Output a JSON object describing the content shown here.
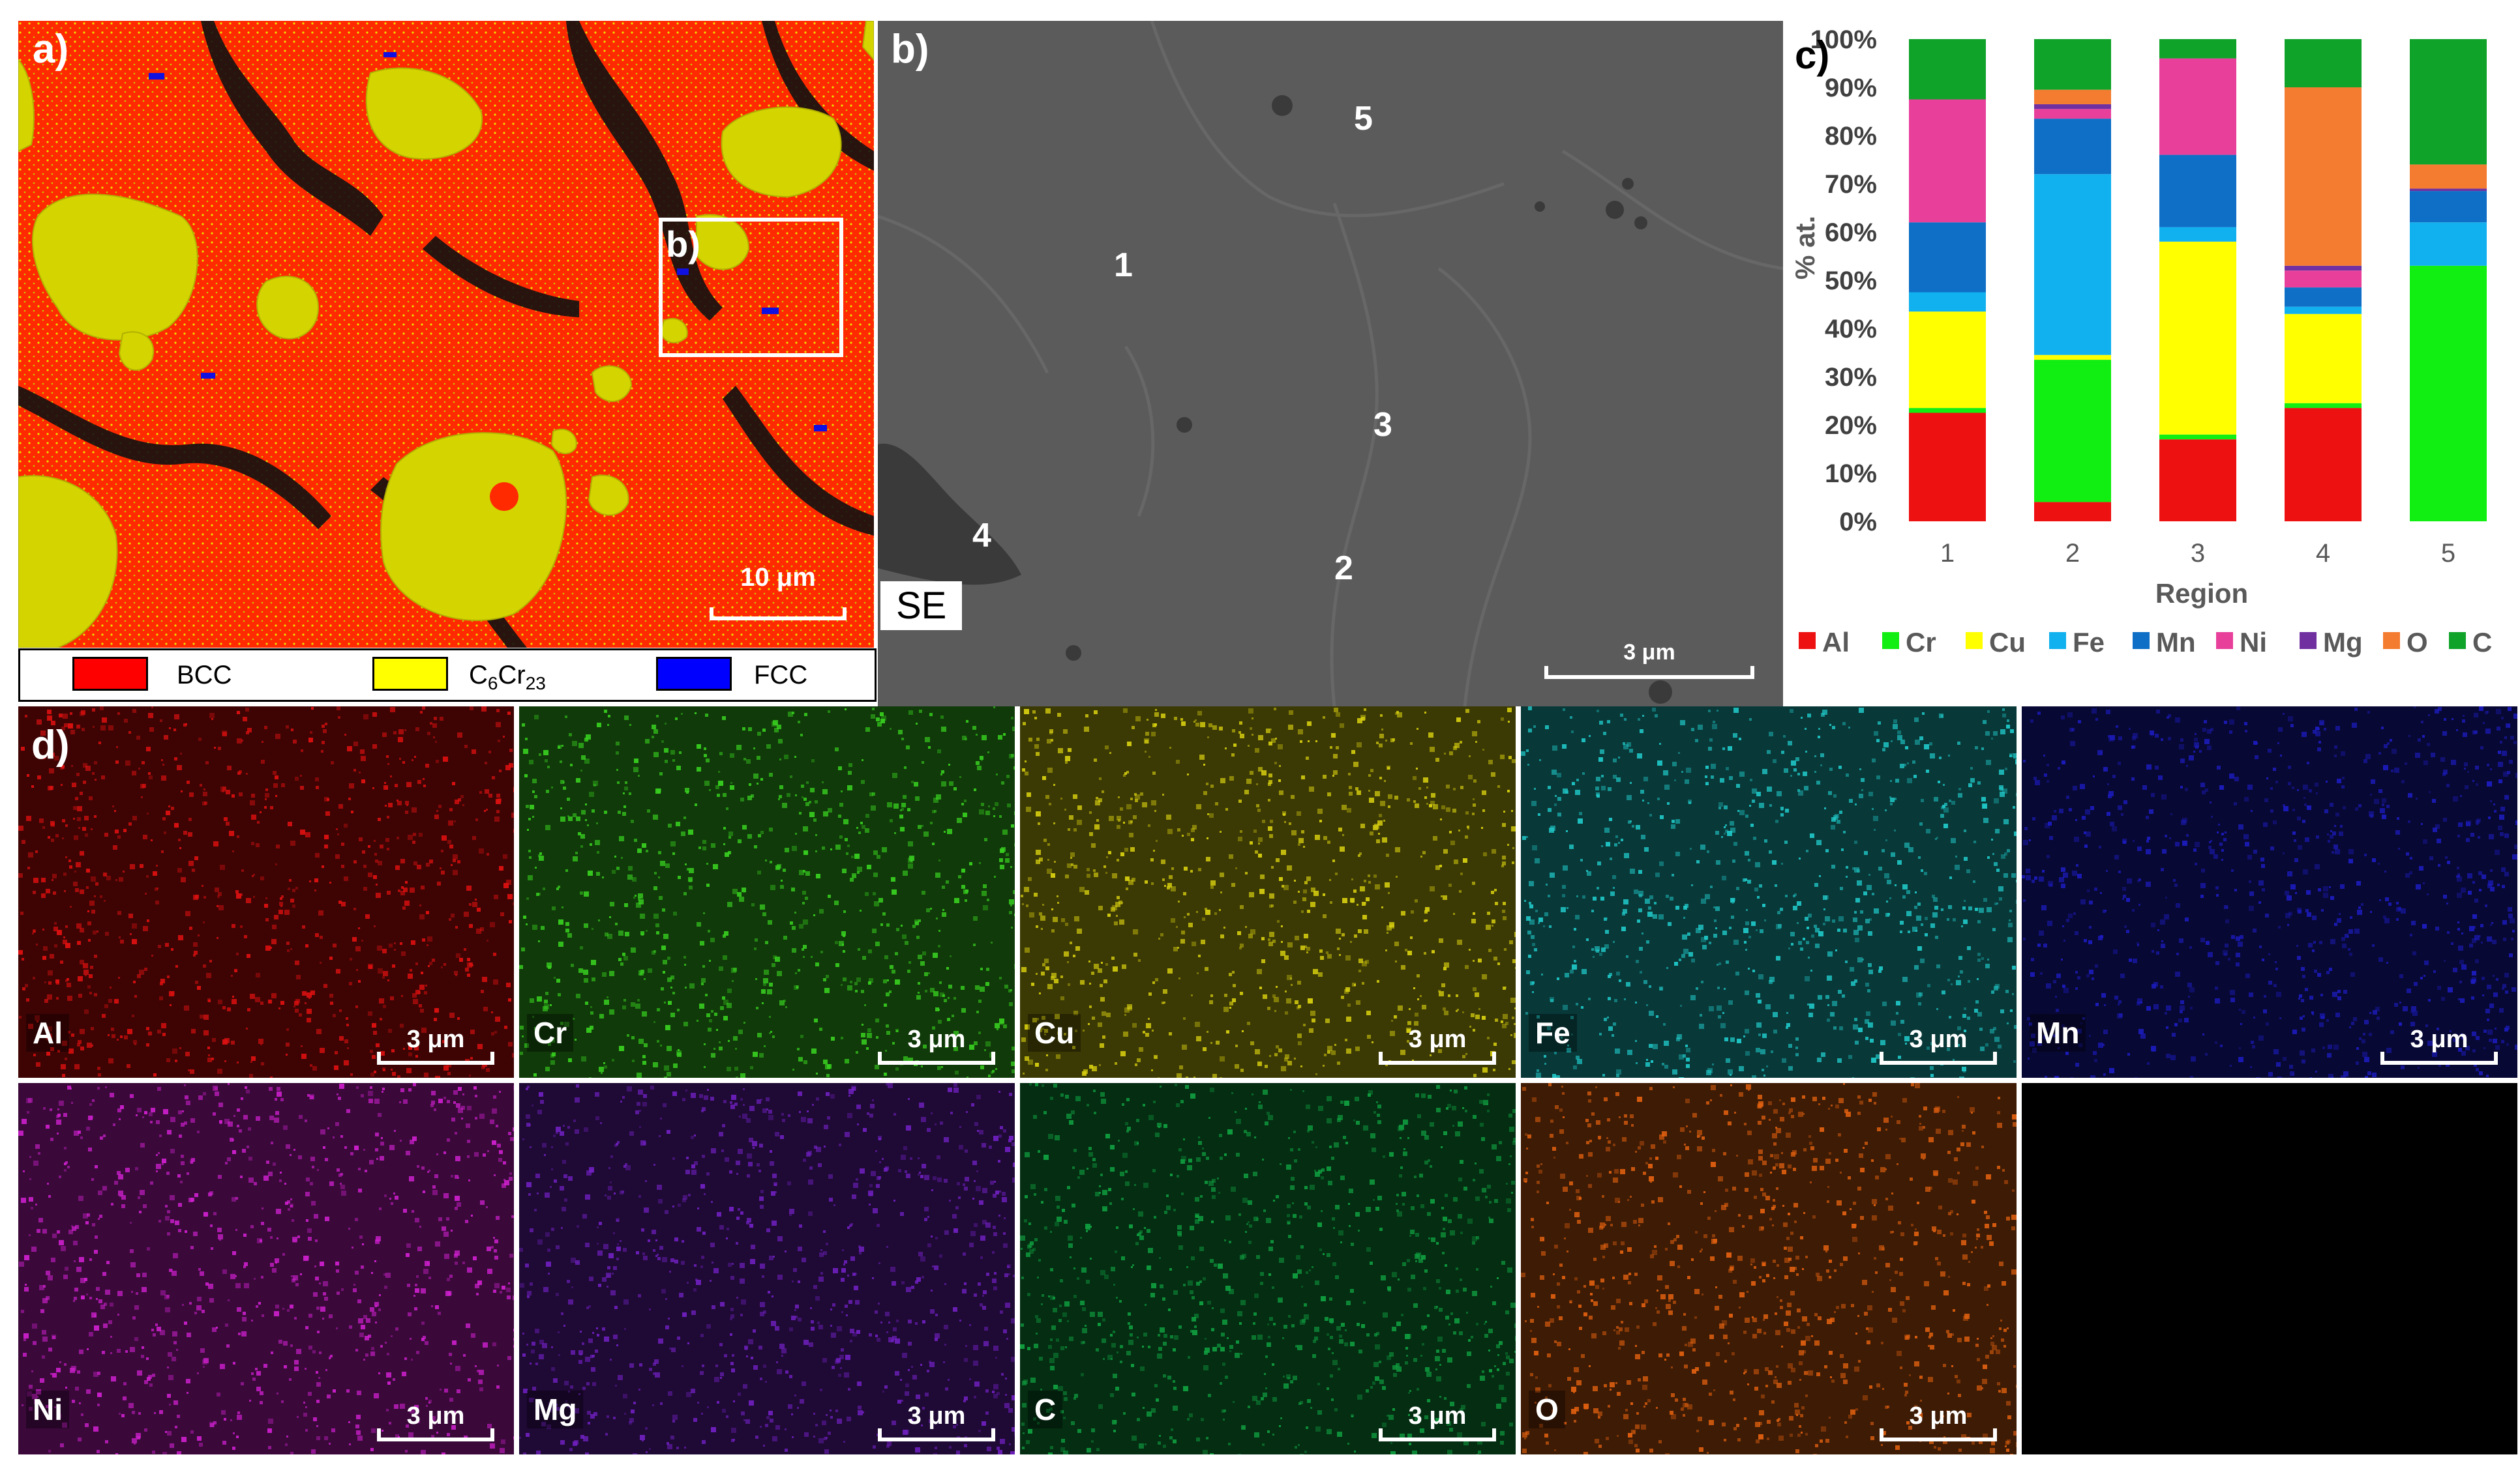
{
  "panels": {
    "a": {
      "label": "a)",
      "inset_label": "b)",
      "scale": "10 μm"
    },
    "b": {
      "label": "b)",
      "mode": "SE",
      "scale": "3 μm",
      "regions": [
        "1",
        "2",
        "3",
        "4",
        "5"
      ]
    },
    "c": {
      "label": "c)"
    },
    "d": {
      "label": "d)"
    }
  },
  "phase_legend": [
    {
      "name": "BCC",
      "color": "#ff0000"
    },
    {
      "name": "C6Cr23",
      "display_main": "C",
      "sub1": "6",
      "mid": "Cr",
      "sub2": "23",
      "color": "#ffff00"
    },
    {
      "name": "FCC",
      "color": "#0000ff"
    }
  ],
  "maps": [
    {
      "element": "Al",
      "scale": "3 μm",
      "color": "#e01010"
    },
    {
      "element": "Cr",
      "scale": "3 μm",
      "color": "#38d020"
    },
    {
      "element": "Cu",
      "scale": "3 μm",
      "color": "#d8d010"
    },
    {
      "element": "Fe",
      "scale": "3 μm",
      "color": "#20c8c8"
    },
    {
      "element": "Mn",
      "scale": "3 μm",
      "color": "#1c1cc0"
    },
    {
      "element": "Ni",
      "scale": "3 μm",
      "color": "#d020d0"
    },
    {
      "element": "Mg",
      "scale": "3 μm",
      "color": "#7020c0"
    },
    {
      "element": "C",
      "scale": "3 μm",
      "color": "#10a040"
    },
    {
      "element": "O",
      "scale": "3 μm",
      "color": "#e06010"
    }
  ],
  "chart_data": {
    "type": "bar",
    "stacked": true,
    "xlabel": "Region",
    "ylabel": "% at.",
    "ylim": [
      0,
      100
    ],
    "yticks": [
      "0%",
      "10%",
      "20%",
      "30%",
      "40%",
      "50%",
      "60%",
      "70%",
      "80%",
      "90%",
      "100%"
    ],
    "categories": [
      "1",
      "2",
      "3",
      "4",
      "5"
    ],
    "legend_position": "bottom",
    "series": [
      {
        "name": "Al",
        "color": "#ee1111",
        "values": [
          22.5,
          4,
          17,
          23.5,
          0
        ]
      },
      {
        "name": "Cr",
        "color": "#11ee11",
        "values": [
          1,
          29.5,
          1,
          1,
          53
        ]
      },
      {
        "name": "Cu",
        "color": "#ffff00",
        "values": [
          20,
          1,
          40,
          18.5,
          0
        ]
      },
      {
        "name": "Fe",
        "color": "#11b0ee",
        "values": [
          4,
          37.5,
          3,
          1.5,
          9
        ]
      },
      {
        "name": "Mn",
        "color": "#0f6fc6",
        "values": [
          14.5,
          11.5,
          15,
          4,
          6.5
        ]
      },
      {
        "name": "Ni",
        "color": "#e8409a",
        "values": [
          25.5,
          2,
          20,
          3.5,
          0
        ]
      },
      {
        "name": "Mg",
        "color": "#7030a0",
        "values": [
          0,
          1,
          0,
          1,
          0.5
        ]
      },
      {
        "name": "O",
        "color": "#f47c30",
        "values": [
          0,
          3,
          0,
          37,
          5
        ]
      },
      {
        "name": "C",
        "color": "#10a32a",
        "values": [
          12.5,
          10.5,
          4,
          10,
          26
        ]
      }
    ]
  }
}
